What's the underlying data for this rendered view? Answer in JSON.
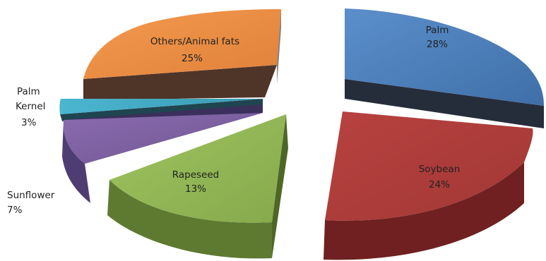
{
  "chart_data": {
    "type": "pie",
    "style": "3d-exploded",
    "legend": "none",
    "slices": [
      {
        "name": "Palm",
        "label": "Palm",
        "value": 28,
        "value_label": "28%",
        "color": "#4F81BD"
      },
      {
        "name": "Soybean",
        "label": "Soybean",
        "value": 24,
        "value_label": "24%",
        "color": "#C0504D"
      },
      {
        "name": "Rapeseed",
        "label": "Rapeseed",
        "value": 13,
        "value_label": "13%",
        "color": "#9BBB59"
      },
      {
        "name": "Sunflower",
        "label": "Sunflower",
        "value": 7,
        "value_label": "7%",
        "color": "#8064A2"
      },
      {
        "name": "Palm Kernel",
        "label": "Palm Kernel",
        "label_lines": [
          "Palm",
          "Kernel"
        ],
        "value": 3,
        "value_label": "3%",
        "color": "#4BACC6"
      },
      {
        "name": "Others/Animal fats",
        "label": "Others/Animal fats",
        "value": 25,
        "value_label": "25%",
        "color": "#F79646"
      }
    ]
  }
}
